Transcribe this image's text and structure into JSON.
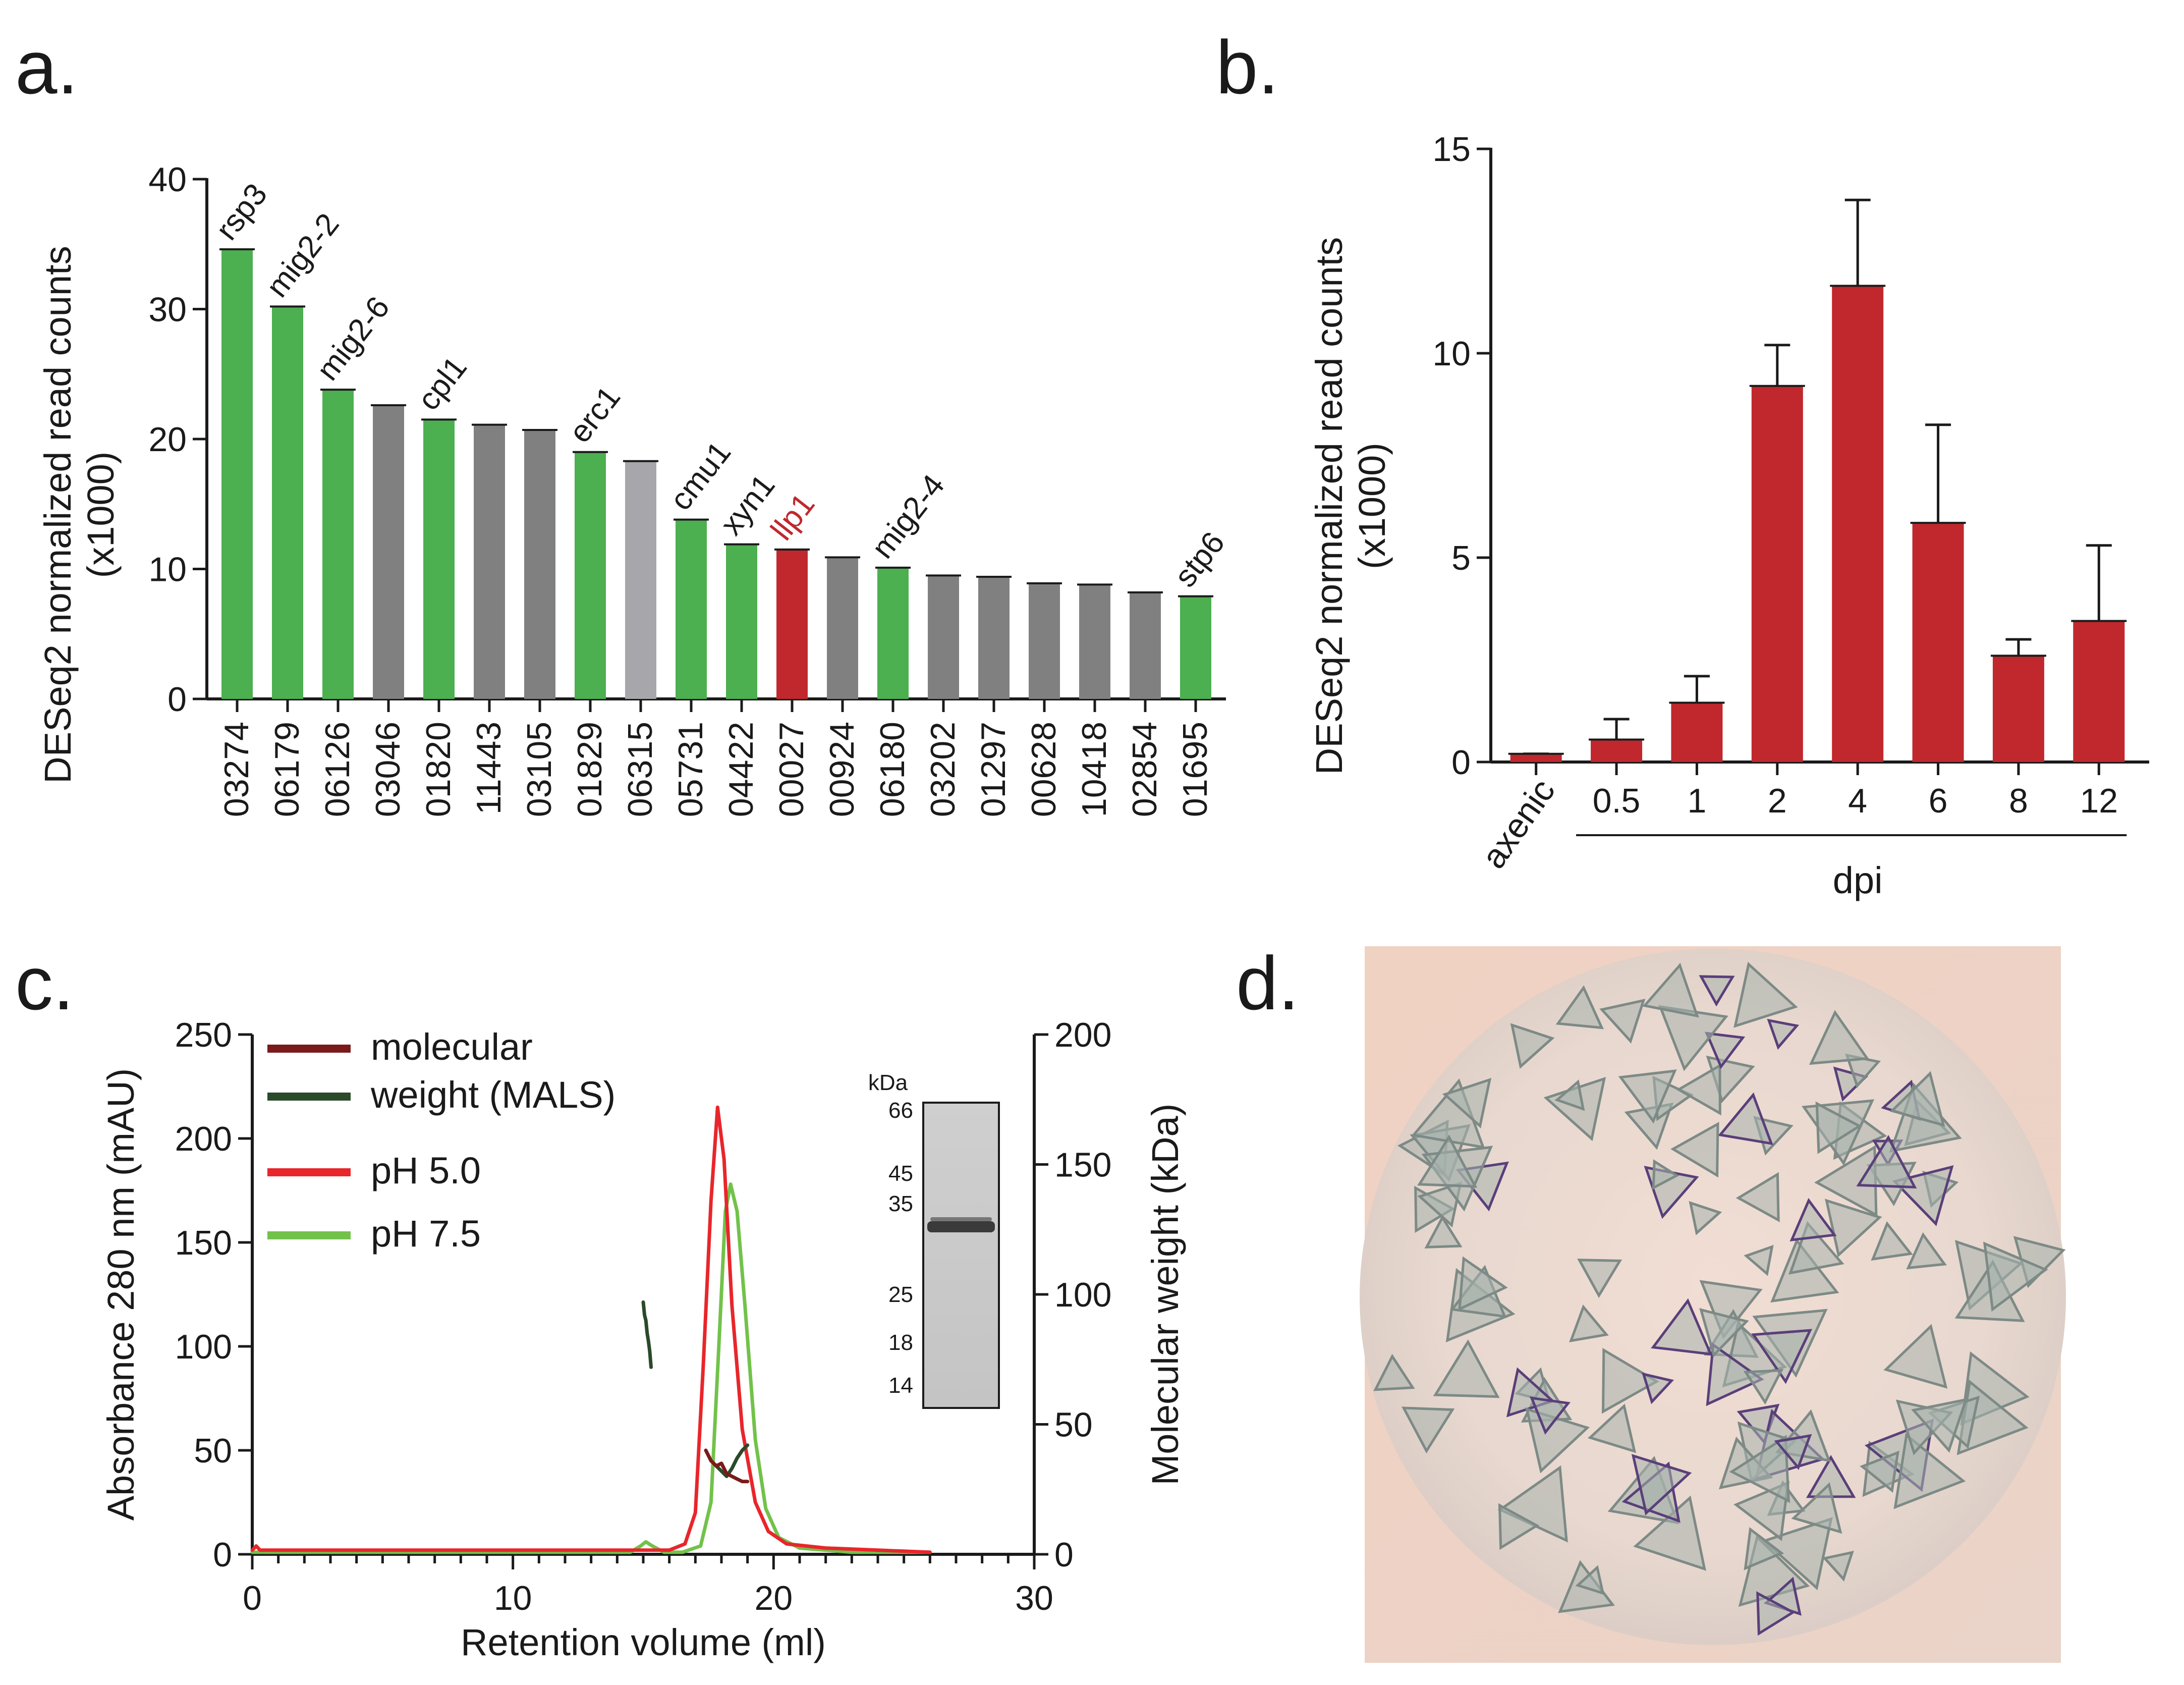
{
  "colors": {
    "green": "#4caf50",
    "grey": "#808080",
    "light_grey": "#a7a7ab",
    "red": "#c0282d",
    "ph5_line": "#e8262b",
    "ph75_line": "#72c24a",
    "mw_dark_red": "#7a1a1a",
    "mw_dark_green": "#2a4a2a",
    "axis": "#1a1a1a",
    "label_red": "#c0282d"
  },
  "panels": {
    "a": {
      "letter": "a."
    },
    "b": {
      "letter": "b."
    },
    "c": {
      "letter": "c."
    },
    "d": {
      "letter": "d."
    }
  },
  "chart_data": [
    {
      "panel": "a",
      "type": "bar",
      "title": "",
      "xlabel": "",
      "ylabel_line1": "DESeq2 normalized read counts",
      "ylabel_line2": "(x1000)",
      "ylim": [
        0,
        40
      ],
      "yticks": [
        0,
        10,
        20,
        30,
        40
      ],
      "categories": [
        "03274",
        "06179",
        "06126",
        "03046",
        "01820",
        "11443",
        "03105",
        "01829",
        "06315",
        "05731",
        "04422",
        "00027",
        "00924",
        "06180",
        "03202",
        "01297",
        "00628",
        "10418",
        "02854",
        "01695"
      ],
      "values": [
        34.6,
        30.2,
        23.8,
        22.6,
        21.5,
        21.1,
        20.7,
        19.0,
        18.3,
        13.8,
        11.9,
        11.5,
        10.9,
        10.1,
        9.5,
        9.4,
        8.9,
        8.8,
        8.2,
        7.9
      ],
      "bar_colors": [
        "green",
        "green",
        "green",
        "grey",
        "green",
        "grey",
        "grey",
        "green",
        "light_grey",
        "green",
        "green",
        "red",
        "grey",
        "green",
        "grey",
        "grey",
        "grey",
        "grey",
        "grey",
        "green"
      ],
      "gene_labels": [
        "rsp3",
        "mig2-2",
        "mig2-6",
        "",
        "cpl1",
        "",
        "",
        "erc1",
        "",
        "cmu1",
        "xyn1",
        "llp1",
        "",
        "mig2-4",
        "",
        "",
        "",
        "",
        "",
        "stp6"
      ],
      "highlight_label": "llp1"
    },
    {
      "panel": "b",
      "type": "bar",
      "title": "",
      "xlabel": "dpi",
      "ylabel_line1": "DESeq2 normalized read counts",
      "ylabel_line2": "(x1000)",
      "ylim": [
        0,
        15
      ],
      "yticks": [
        0,
        5,
        10,
        15
      ],
      "categories": [
        "axenic",
        "0.5",
        "1",
        "2",
        "4",
        "6",
        "8",
        "12"
      ],
      "values": [
        0.2,
        0.55,
        1.45,
        9.2,
        11.65,
        5.85,
        2.6,
        3.45
      ],
      "error_upper": [
        0.2,
        1.05,
        2.1,
        10.2,
        13.75,
        8.25,
        3.0,
        5.3
      ],
      "color": "red"
    },
    {
      "panel": "c",
      "type": "line",
      "title": "",
      "xlabel": "Retention volume (ml)",
      "ylabel": "Absorbance 280 nm (mAU)",
      "y2label": "Molecular weight (kDa)",
      "xlim": [
        0,
        30
      ],
      "xticks": [
        0,
        10,
        20,
        30
      ],
      "ylim": [
        0,
        250
      ],
      "yticks": [
        0,
        50,
        100,
        150,
        200,
        250
      ],
      "y2lim": [
        0,
        200
      ],
      "y2ticks": [
        0,
        50,
        100,
        150,
        200
      ],
      "legend": [
        {
          "label": "molecular",
          "color": "mw_dark_red"
        },
        {
          "label": "weight (MALS)",
          "color": "mw_dark_green"
        },
        {
          "label": "pH 5.0",
          "color": "ph5_line"
        },
        {
          "label": "pH 7.5",
          "color": "ph75_line"
        }
      ],
      "series": [
        {
          "name": "pH 5.0",
          "axis": "left",
          "color": "ph5_line",
          "x": [
            0,
            0.15,
            0.3,
            1,
            5,
            10,
            15,
            16,
            16.6,
            17.0,
            17.3,
            17.6,
            17.85,
            18.1,
            18.4,
            18.8,
            19.3,
            19.8,
            20.5,
            22,
            24,
            26
          ],
          "y": [
            2,
            4,
            2,
            2,
            2,
            2,
            2,
            2,
            5,
            20,
            90,
            170,
            215,
            190,
            120,
            60,
            25,
            11,
            5,
            3,
            2,
            1
          ]
        },
        {
          "name": "pH 7.5",
          "axis": "left",
          "color": "ph75_line",
          "x": [
            0,
            1,
            10,
            14.5,
            14.9,
            15.1,
            15.35,
            15.8,
            16.5,
            17.2,
            17.6,
            17.9,
            18.15,
            18.35,
            18.6,
            18.9,
            19.3,
            19.7,
            20.2,
            21,
            23,
            26
          ],
          "y": [
            1,
            1,
            1,
            1,
            4,
            6,
            4,
            1,
            1,
            4,
            25,
            100,
            165,
            178,
            165,
            120,
            55,
            22,
            8,
            3,
            1,
            1
          ]
        },
        {
          "name": "molecular weight (MALS) pH 7.5",
          "axis": "right",
          "color": "mw_dark_green",
          "x": [
            15.0,
            15.05,
            15.1,
            15.15,
            15.2,
            15.25,
            15.3
          ],
          "y": [
            97,
            92,
            90,
            85,
            82,
            78,
            72
          ]
        },
        {
          "name": "molecular weight (MALS) dark green main",
          "axis": "right",
          "color": "mw_dark_green",
          "x": [
            17.6,
            17.8,
            18.0,
            18.2,
            18.4,
            18.6,
            18.8,
            19.0
          ],
          "y": [
            36,
            34,
            32,
            30,
            33,
            37,
            40,
            42
          ]
        },
        {
          "name": "molecular weight (MALS) pH 5.0",
          "axis": "right",
          "color": "mw_dark_red",
          "x": [
            17.4,
            17.6,
            17.8,
            18.0,
            18.2,
            18.4,
            18.6,
            18.8,
            19.0
          ],
          "y": [
            40,
            36,
            34,
            35,
            31,
            30,
            29,
            28,
            28
          ]
        }
      ],
      "gel_inset": {
        "unit_label": "kDa",
        "markers": [
          "66",
          "45",
          "35",
          "25",
          "18",
          "14"
        ]
      }
    }
  ]
}
